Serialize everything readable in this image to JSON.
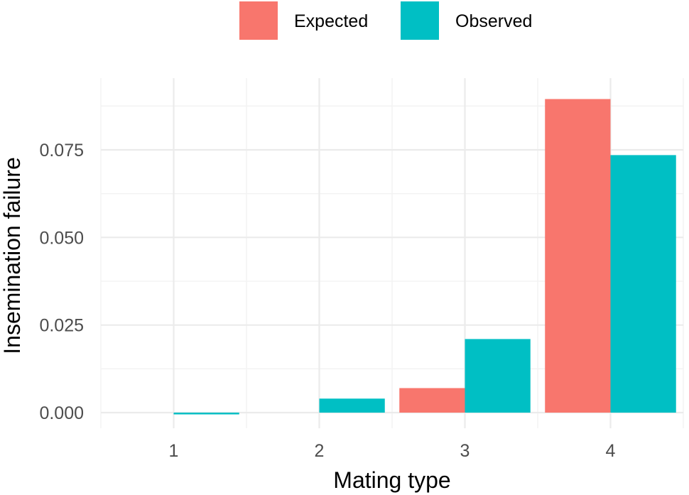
{
  "chart_data": {
    "type": "bar",
    "title": "",
    "xlabel": "Mating type",
    "ylabel": "Insemination failure",
    "categories": [
      "1",
      "2",
      "3",
      "4"
    ],
    "series": [
      {
        "name": "Expected",
        "color": "#F8766D",
        "values": [
          0.0,
          0.0,
          0.007,
          0.0895
        ]
      },
      {
        "name": "Observed",
        "color": "#00BFC4",
        "values": [
          -0.0005,
          0.004,
          0.021,
          0.0735
        ]
      }
    ],
    "yticks": [
      "0.000",
      "0.025",
      "0.050",
      "0.075"
    ],
    "ytick_values": [
      0,
      0.025,
      0.05,
      0.075
    ],
    "ylim": [
      -0.005,
      0.094
    ],
    "grid": true,
    "legend_position": "top"
  }
}
